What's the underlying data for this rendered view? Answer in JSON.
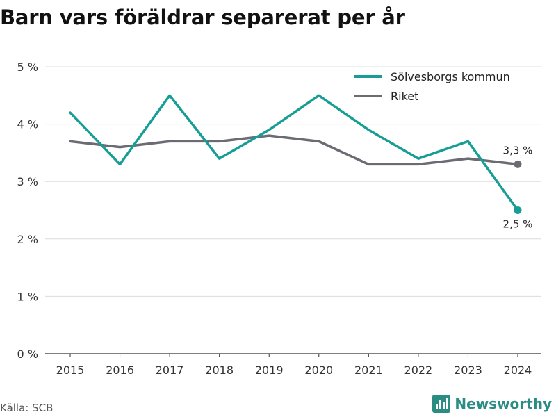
{
  "title": "Barn vars föräldrar separerat per år",
  "source": "Källa: SCB",
  "brand": "Newsworthy",
  "chart_data": {
    "type": "line",
    "x": [
      2015,
      2016,
      2017,
      2018,
      2019,
      2020,
      2021,
      2022,
      2023,
      2024
    ],
    "series": [
      {
        "name": "Sölvesborgs kommun",
        "color": "#169e96",
        "values": [
          4.2,
          3.3,
          4.5,
          3.4,
          3.9,
          4.5,
          3.9,
          3.4,
          3.7,
          2.5
        ],
        "end_label": "2,5 %"
      },
      {
        "name": "Riket",
        "color": "#6b6b73",
        "values": [
          3.7,
          3.6,
          3.7,
          3.7,
          3.8,
          3.7,
          3.3,
          3.3,
          3.4,
          3.3
        ],
        "end_label": "3,3 %"
      }
    ],
    "y_ticks": [
      0,
      1,
      2,
      3,
      4,
      5
    ],
    "y_tick_labels": [
      "0 %",
      "1 %",
      "2 %",
      "3 %",
      "4 %",
      "5 %"
    ],
    "ylim": [
      0,
      5
    ],
    "grid": true,
    "legend": "top-right"
  }
}
